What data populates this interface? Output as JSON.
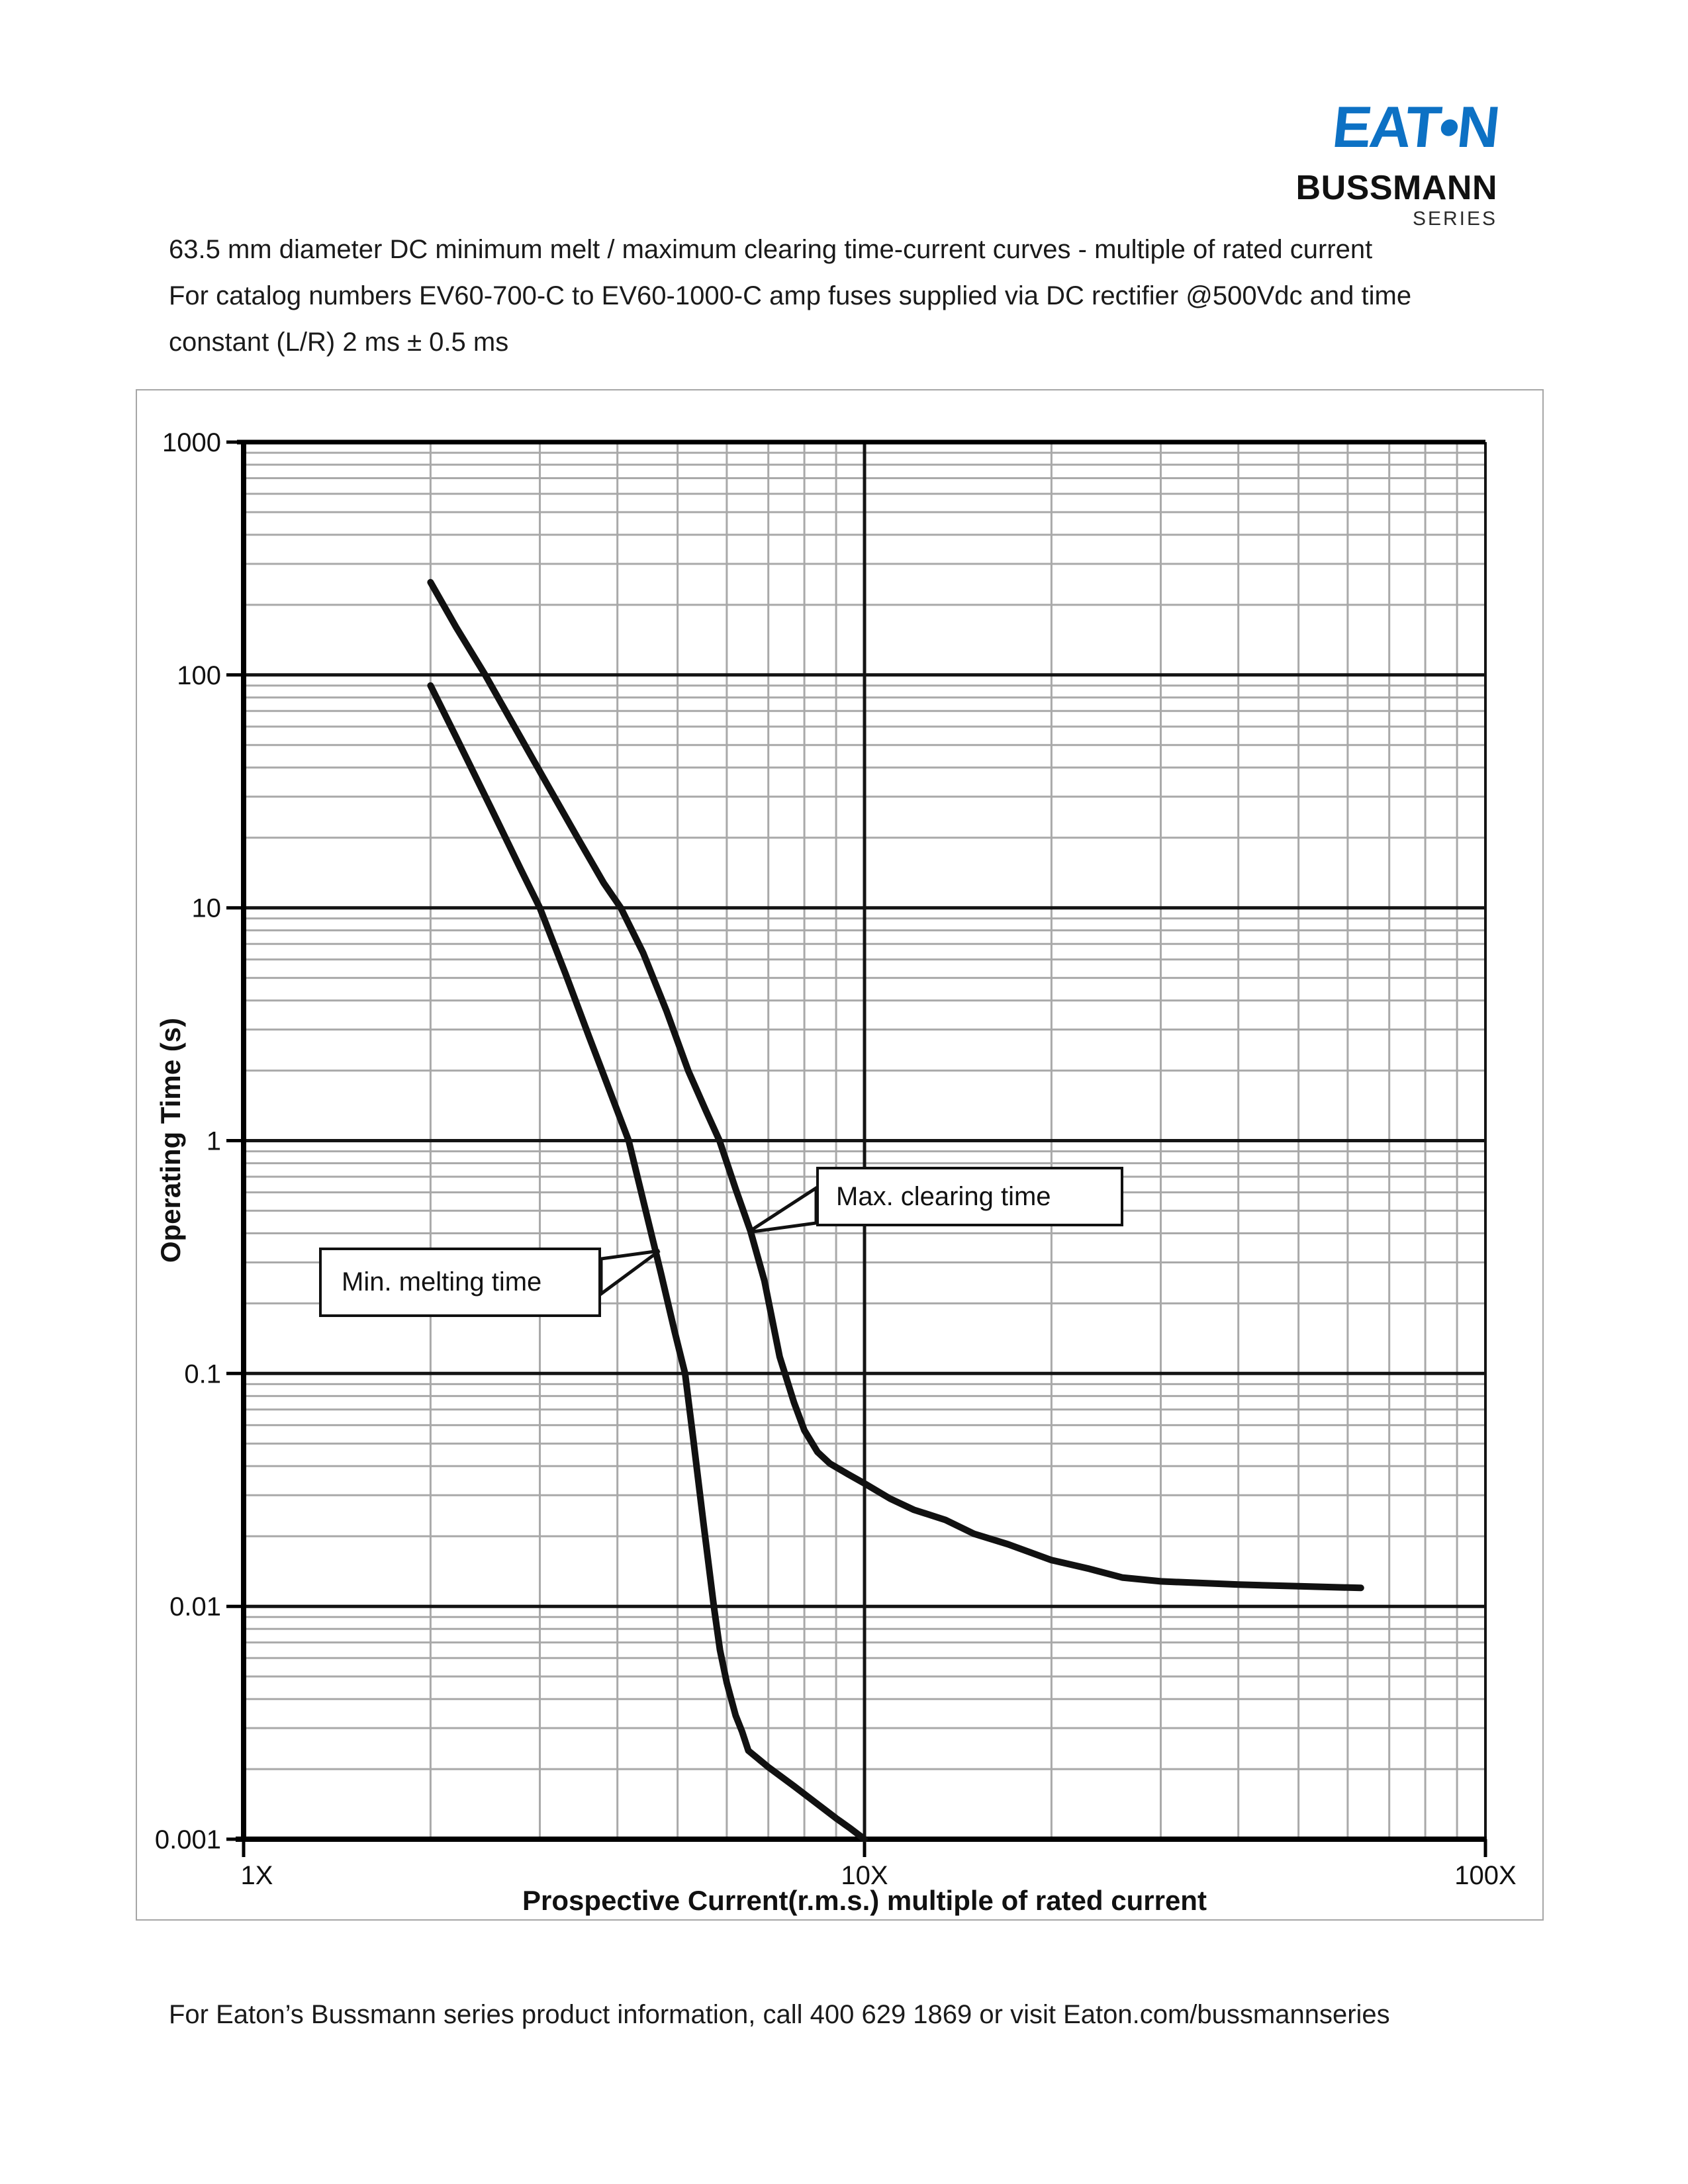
{
  "logo": {
    "eaton": "EAT•N",
    "bussmann": "BUSSMANN",
    "series": "SERIES",
    "eaton_blue": "#0d71c4"
  },
  "header": {
    "line1": "63.5 mm diameter DC minimum melt / maximum clearing time-current curves - multiple of rated current",
    "line2": "For catalog numbers EV60-700-C to EV60-1000-C amp fuses supplied via DC rectifier @500Vdc and time",
    "line3": "constant (L/R) 2 ms ± 0.5 ms"
  },
  "footer": {
    "text": "For Eaton’s Bussmann series product information, call 400 629 1869 or visit Eaton.com/bussmannseries"
  },
  "chart_data": {
    "type": "line",
    "title": "63.5 mm diameter DC minimum melt / maximum clearing time-current curves - multiple of rated current",
    "x_axis": {
      "label": "Prospective Current(r.m.s.) multiple of rated current",
      "scale": "log",
      "min": 1,
      "max": 100,
      "tick_labels": [
        "1X",
        "10X",
        "100X"
      ],
      "tick_values": [
        1,
        10,
        100
      ]
    },
    "y_axis": {
      "label": "Operating Time (s)",
      "scale": "log",
      "min": 0.001,
      "max": 1000,
      "tick_labels": [
        "1000",
        "100",
        "10",
        "1",
        "0.1",
        "0.01",
        "0.001"
      ],
      "tick_values": [
        1000,
        100,
        10,
        1,
        0.1,
        0.01,
        0.001
      ]
    },
    "grid": {
      "minor_color": "#a9a9a9",
      "major_color": "#141414",
      "axis_color": "#000000",
      "minor_on": true
    },
    "legend_position": "callouts-inside-plot",
    "series": [
      {
        "name": "Min. melting time",
        "color": "#111111",
        "points": [
          [
            2.0,
            90
          ],
          [
            2.2,
            54
          ],
          [
            2.5,
            27
          ],
          [
            2.8,
            14.5
          ],
          [
            3.0,
            10
          ],
          [
            3.3,
            5.2
          ],
          [
            3.6,
            2.8
          ],
          [
            3.9,
            1.6
          ],
          [
            4.17,
            1.0
          ],
          [
            4.45,
            0.49
          ],
          [
            4.7,
            0.27
          ],
          [
            4.95,
            0.15
          ],
          [
            5.14,
            0.1
          ],
          [
            5.3,
            0.052
          ],
          [
            5.5,
            0.023
          ],
          [
            5.72,
            0.01
          ],
          [
            5.85,
            0.0065
          ],
          [
            6.0,
            0.0047
          ],
          [
            6.2,
            0.0034
          ],
          [
            6.35,
            0.0029
          ],
          [
            6.5,
            0.0024
          ],
          [
            7.0,
            0.00204
          ],
          [
            7.7,
            0.00169
          ],
          [
            8.3,
            0.00145
          ],
          [
            9.0,
            0.00123
          ],
          [
            9.5,
            0.00111
          ],
          [
            10.0,
            0.001
          ]
        ]
      },
      {
        "name": "Max. clearing time",
        "color": "#111111",
        "points": [
          [
            2.0,
            250
          ],
          [
            2.2,
            160
          ],
          [
            2.45,
            100
          ],
          [
            2.75,
            58
          ],
          [
            3.1,
            33
          ],
          [
            3.45,
            20
          ],
          [
            3.8,
            12.8
          ],
          [
            4.05,
            10
          ],
          [
            4.4,
            6.4
          ],
          [
            4.8,
            3.6
          ],
          [
            5.2,
            2.0
          ],
          [
            5.55,
            1.35
          ],
          [
            5.84,
            1.0
          ],
          [
            6.2,
            0.62
          ],
          [
            6.55,
            0.41
          ],
          [
            6.9,
            0.25
          ],
          [
            7.3,
            0.118
          ],
          [
            7.7,
            0.075
          ],
          [
            8.0,
            0.057
          ],
          [
            8.4,
            0.046
          ],
          [
            8.8,
            0.041
          ],
          [
            9.4,
            0.037
          ],
          [
            10.0,
            0.0337
          ],
          [
            11.0,
            0.029
          ],
          [
            12.0,
            0.026
          ],
          [
            13.5,
            0.0235
          ],
          [
            15.0,
            0.0205
          ],
          [
            17.0,
            0.0185
          ],
          [
            20.0,
            0.0158
          ],
          [
            23.0,
            0.0145
          ],
          [
            26.0,
            0.0133
          ],
          [
            30.0,
            0.0128
          ],
          [
            40.0,
            0.0124
          ],
          [
            50.0,
            0.0122
          ],
          [
            63.0,
            0.012
          ]
        ]
      }
    ],
    "annotations": [
      {
        "text": "Max. clearing time"
      },
      {
        "text": "Min. melting time"
      }
    ]
  }
}
